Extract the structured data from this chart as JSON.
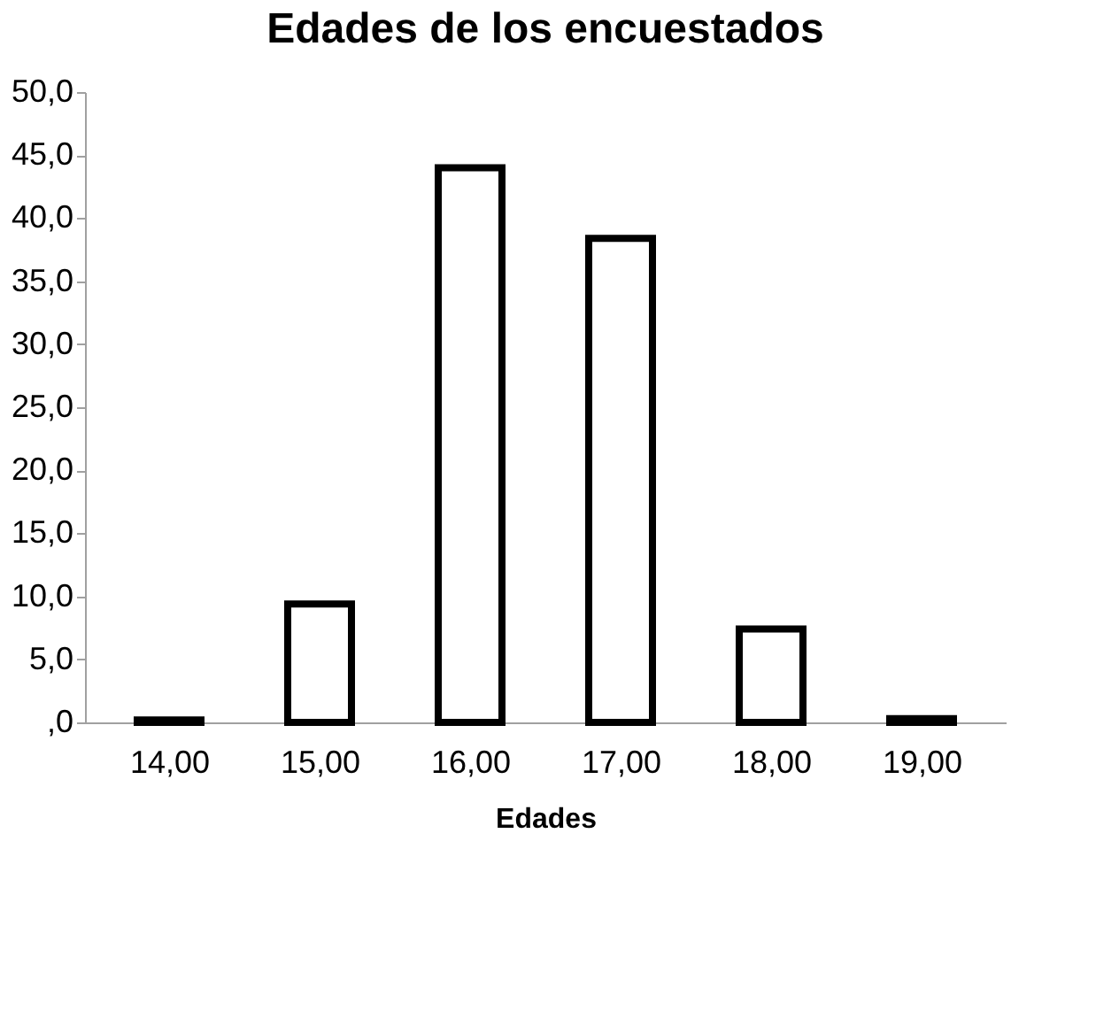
{
  "chart_data": {
    "type": "bar",
    "title": "Edades de los encuestados",
    "xlabel": "Edades",
    "categories": [
      "14,00",
      "15,00",
      "16,00",
      "17,00",
      "18,00",
      "19,00"
    ],
    "values": [
      0.2,
      9.4,
      44.0,
      38.4,
      7.4,
      0.3
    ],
    "color": "#ffffff",
    "ylim": [
      0,
      50
    ],
    "yticks": [
      {
        "value": 0,
        "label": ",0"
      },
      {
        "value": 5,
        "label": "5,0"
      },
      {
        "value": 10,
        "label": "10,0"
      },
      {
        "value": 15,
        "label": "15,0"
      },
      {
        "value": 20,
        "label": "20,0"
      },
      {
        "value": 25,
        "label": "25,0"
      },
      {
        "value": 30,
        "label": "30,0"
      },
      {
        "value": 35,
        "label": "35,0"
      },
      {
        "value": 40,
        "label": "40,0"
      },
      {
        "value": 45,
        "label": "45,0"
      },
      {
        "value": 50,
        "label": "50,0"
      }
    ],
    "grid": false
  }
}
